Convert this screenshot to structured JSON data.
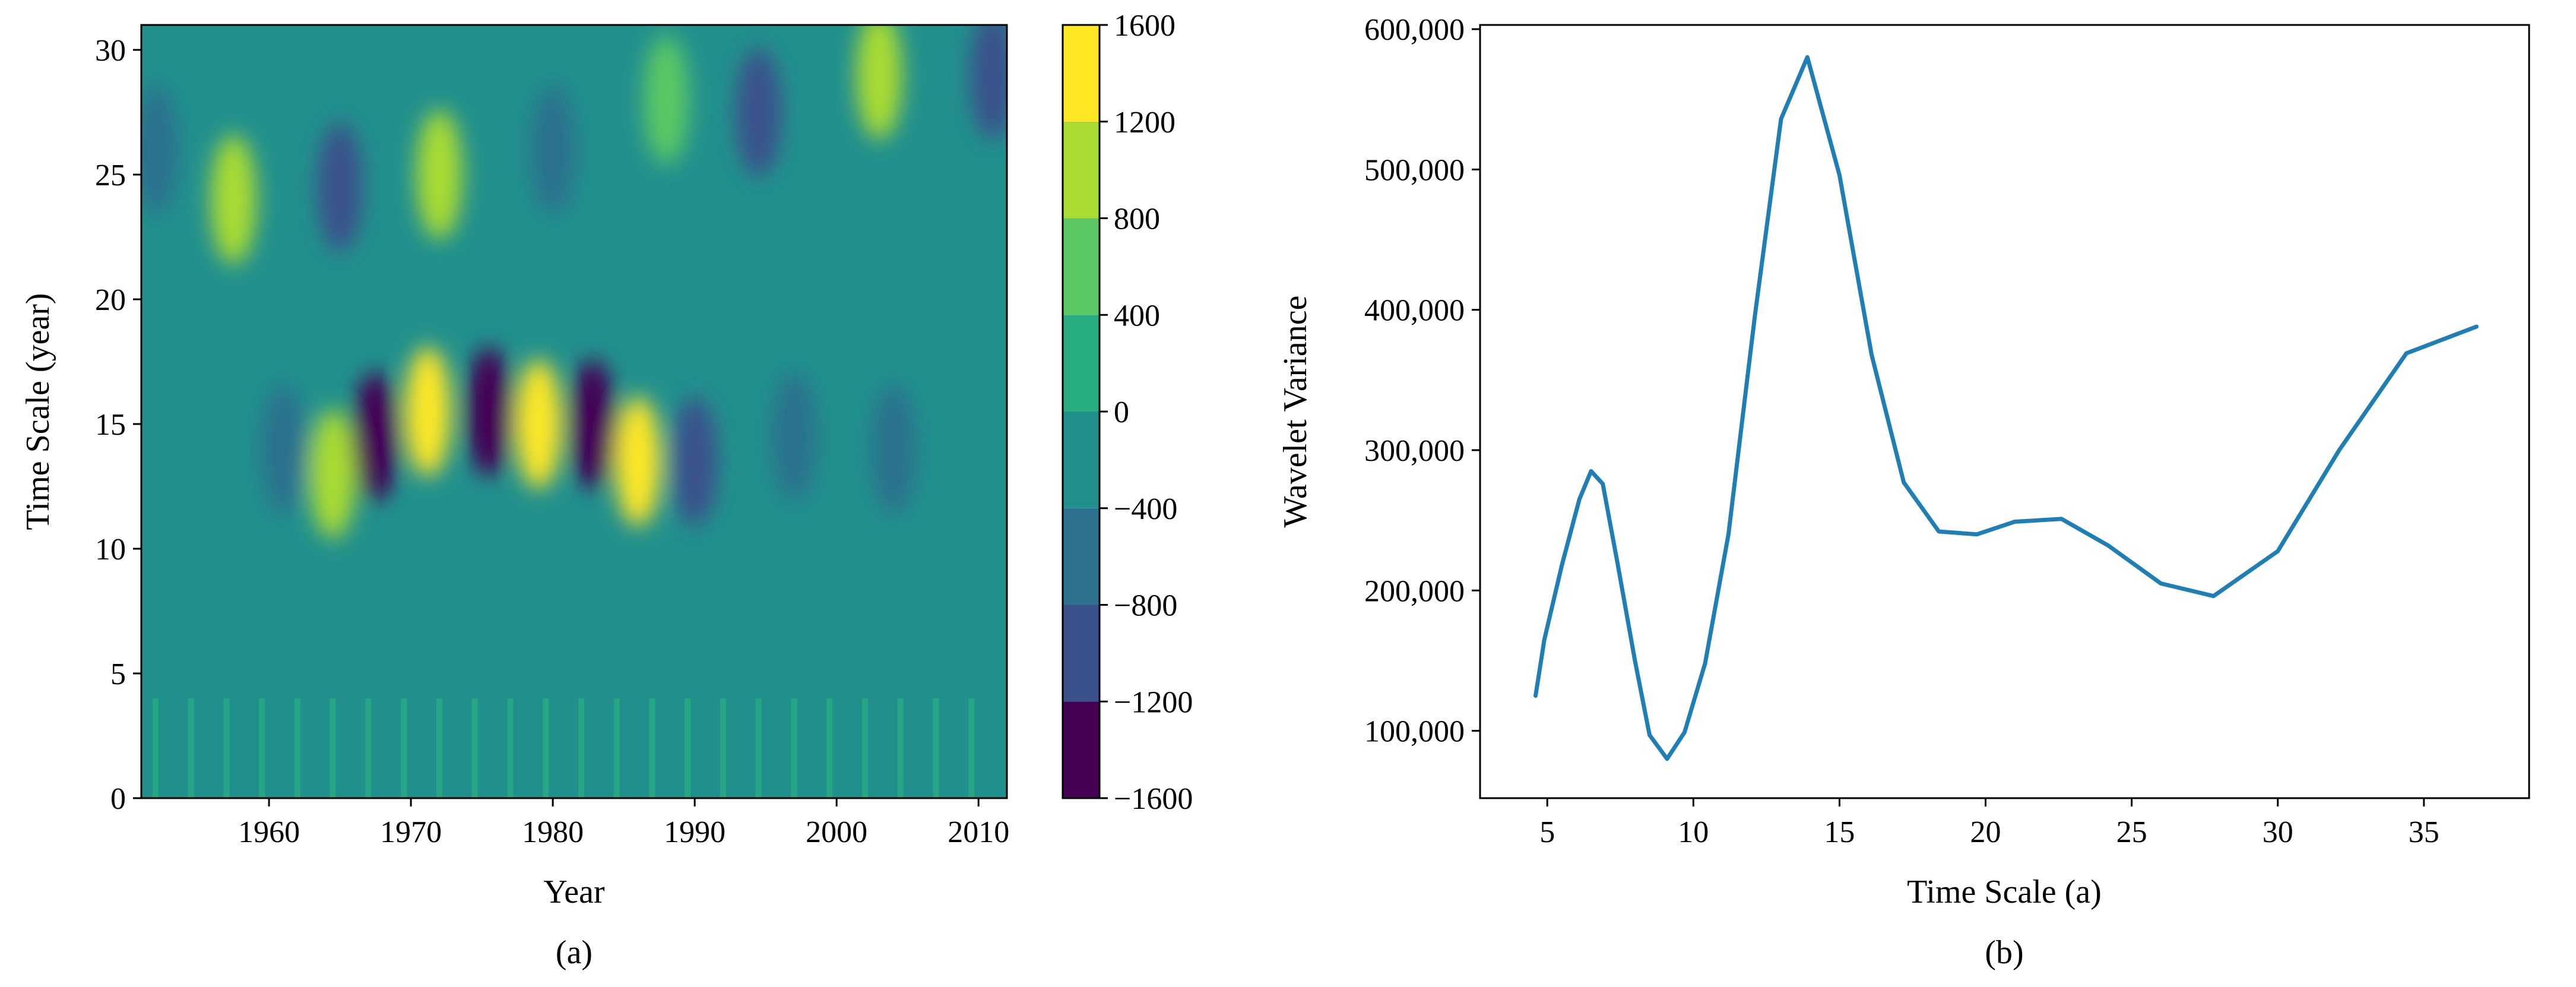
{
  "chart_data": [
    {
      "type": "heatmap",
      "panel_label": "(a)",
      "xlabel": "Year",
      "ylabel": "Time Scale (year)",
      "xlim": [
        1951,
        2012
      ],
      "ylim": [
        0,
        31
      ],
      "xticks": [
        1960,
        1970,
        1980,
        1990,
        2000,
        2010
      ],
      "yticks": [
        0,
        5,
        10,
        15,
        20,
        25,
        30
      ],
      "xtick_labels": [
        "1960",
        "1970",
        "1980",
        "1990",
        "2000",
        "2010"
      ],
      "ytick_labels": [
        "0",
        "5",
        "10",
        "15",
        "20",
        "25",
        "30"
      ],
      "colorbar": {
        "levels": [
          -1600,
          -1200,
          -800,
          -400,
          0,
          400,
          800,
          1200,
          1600
        ],
        "tick_labels": [
          "−1600",
          "−1200",
          "−800",
          "−400",
          "0",
          "400",
          "800",
          "1200",
          "1600"
        ],
        "colors": [
          "#440154",
          "#3b518b",
          "#2c718e",
          "#21908d",
          "#27ad81",
          "#5cc863",
          "#aadc32",
          "#fde725"
        ]
      },
      "features": [
        {
          "x": 1971.2,
          "y": 15.5,
          "value": 1400
        },
        {
          "x": 1979.0,
          "y": 15.0,
          "value": 1350
        },
        {
          "x": 1986.0,
          "y": 13.5,
          "value": 1200
        },
        {
          "x": 1964.5,
          "y": 13.0,
          "value": 800
        },
        {
          "x": 1957.5,
          "y": 24.0,
          "value": 1000
        },
        {
          "x": 1972.0,
          "y": 25.0,
          "value": 800
        },
        {
          "x": 1988.0,
          "y": 28.0,
          "value": 600
        },
        {
          "x": 2003.0,
          "y": 29.0,
          "value": 1100
        },
        {
          "x": 1952.0,
          "y": 26.0,
          "value": -700
        },
        {
          "x": 1965.0,
          "y": 24.5,
          "value": -1000
        },
        {
          "x": 1980.0,
          "y": 26.0,
          "value": -800
        },
        {
          "x": 1994.5,
          "y": 27.5,
          "value": -1100
        },
        {
          "x": 2011.0,
          "y": 29.0,
          "value": -1000
        },
        {
          "x": 1967.5,
          "y": 14.5,
          "value": -1300
        },
        {
          "x": 1975.5,
          "y": 15.5,
          "value": -1500
        },
        {
          "x": 1982.8,
          "y": 15.0,
          "value": -1400
        },
        {
          "x": 1990.0,
          "y": 13.5,
          "value": -1100
        },
        {
          "x": 1961.0,
          "y": 14.0,
          "value": -700
        },
        {
          "x": 1997.0,
          "y": 14.5,
          "value": -600
        },
        {
          "x": 2004.0,
          "y": 14.0,
          "value": -800
        }
      ]
    },
    {
      "type": "line",
      "panel_label": "(b)",
      "xlabel": "Time Scale (a)",
      "ylabel": "Wavelet Variance",
      "xlim": [
        2.7,
        38.6
      ],
      "ylim": [
        52000,
        603000
      ],
      "xticks": [
        5,
        10,
        15,
        20,
        25,
        30,
        35
      ],
      "yticks": [
        100000,
        200000,
        300000,
        400000,
        500000,
        600000
      ],
      "xtick_labels": [
        "5",
        "10",
        "15",
        "20",
        "25",
        "30",
        "35"
      ],
      "ytick_labels": [
        "100,000",
        "200,000",
        "300,000",
        "400,000",
        "500,000",
        "600,000"
      ],
      "line_color": "#1f7fb5",
      "series": [
        {
          "x": [
            4.6,
            4.9,
            5.5,
            6.1,
            6.5,
            6.9,
            7.4,
            8.0,
            8.5,
            9.1,
            9.7,
            10.4,
            11.2,
            12.1,
            13.0,
            13.9,
            15.0,
            16.1,
            17.2,
            18.4,
            19.7,
            21.0,
            22.6,
            24.2,
            26.0,
            27.8,
            30.0,
            32.1,
            34.4,
            36.8
          ],
          "y": [
            125000,
            165000,
            218000,
            265000,
            285000,
            276000,
            220000,
            150000,
            97000,
            80000,
            99000,
            148000,
            240000,
            395000,
            536000,
            580000,
            496000,
            368000,
            277000,
            242000,
            240000,
            249000,
            251000,
            232000,
            205000,
            196000,
            228000,
            300000,
            369000,
            388000
          ]
        }
      ]
    }
  ]
}
